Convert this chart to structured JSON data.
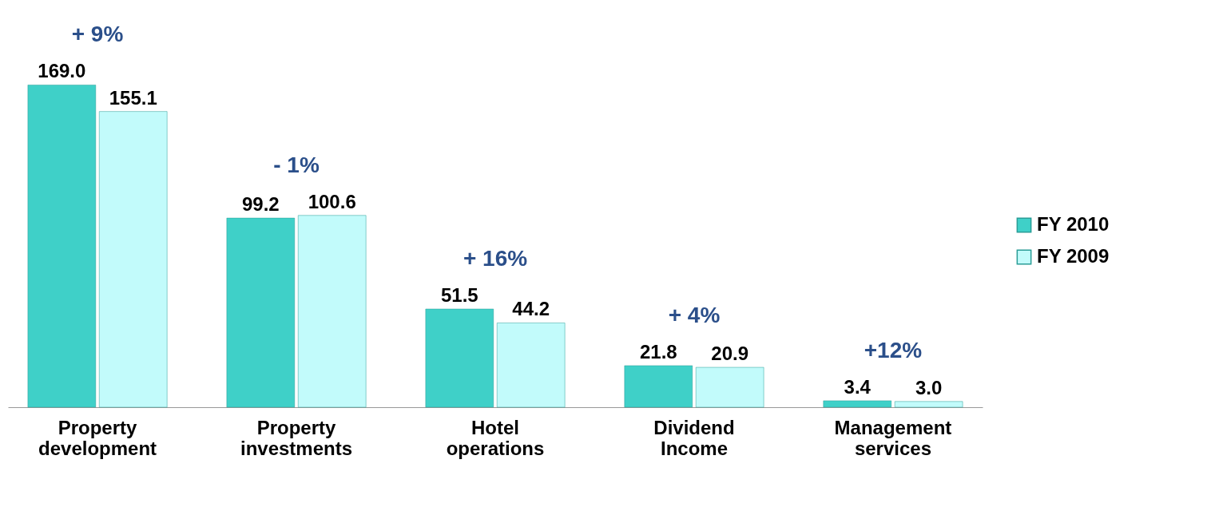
{
  "chart_data": {
    "type": "bar",
    "categories": [
      "Property development",
      "Property investments",
      "Hotel operations",
      "Dividend Income",
      "Management services"
    ],
    "series": [
      {
        "name": "FY 2010",
        "color": "#3fd0c8",
        "values": [
          169.0,
          99.2,
          51.5,
          21.8,
          3.4
        ],
        "value_labels": [
          "169.0",
          "99.2",
          "51.5",
          "21.8",
          "3.4"
        ]
      },
      {
        "name": "FY 2009",
        "color": "#c2fbfb",
        "values": [
          155.1,
          100.6,
          44.2,
          20.9,
          3.0
        ],
        "value_labels": [
          "155.1",
          "100.6",
          "44.2",
          "20.9",
          "3.0"
        ]
      }
    ],
    "legend": "right",
    "annotations": [
      "+ 9%",
      "- 1%",
      "+ 16%",
      "+ 4%",
      "+12%"
    ]
  }
}
